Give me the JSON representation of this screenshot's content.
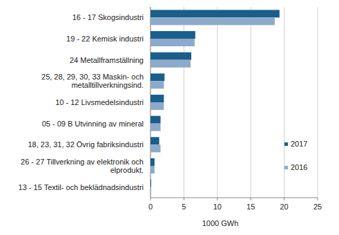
{
  "chart_data": {
    "type": "bar",
    "orientation": "horizontal",
    "categories": [
      "16 - 17 Skogsindustri",
      "19 - 22 Kemisk industri",
      "24 Metallframställning",
      "25, 28, 29, 30, 33 Maskin- och\nmetalltillverkningsind.",
      "10 - 12 Livsmedelsindustri",
      "05 - 09 B Utvinning av mineral",
      "18, 23, 31, 32 Övrig fabriksindustri",
      "26 - 27 Tillverkning av elektronik och\nelprodukt.",
      "13 - 15 Textil- och beklädnadsindustri"
    ],
    "series": [
      {
        "name": "2017",
        "color": "#1b5e8c",
        "values": [
          19.3,
          6.7,
          6.1,
          2.1,
          2.0,
          1.5,
          1.3,
          0.6,
          0.1
        ]
      },
      {
        "name": "2016",
        "color": "#8eaacb",
        "values": [
          18.6,
          6.6,
          6.0,
          2.0,
          2.0,
          1.5,
          1.5,
          0.6,
          0.1
        ]
      }
    ],
    "x_label": "1000 GWh",
    "xlim": [
      0,
      25
    ],
    "xticks": [
      0,
      5,
      10,
      15,
      20,
      25
    ],
    "grid": true,
    "legend": "right"
  }
}
